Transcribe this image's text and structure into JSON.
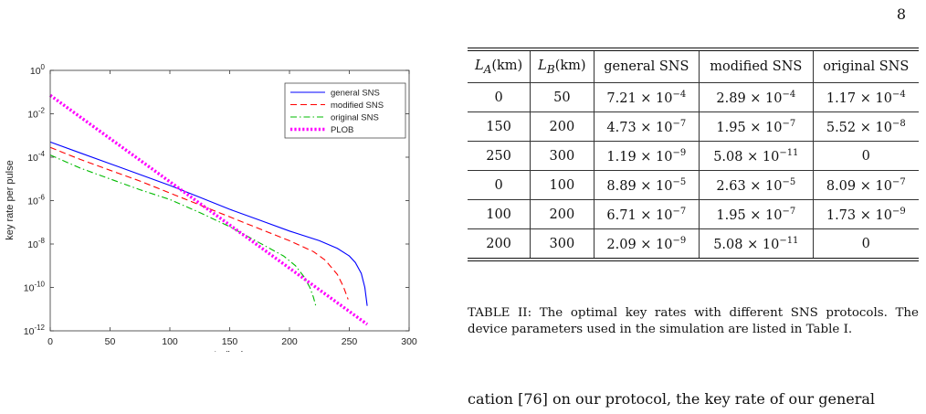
{
  "page_number": "8",
  "chart_data": {
    "type": "line",
    "xlabel": "L_A(km)",
    "ylabel": "key rate per pulse",
    "xlim": [
      0,
      300
    ],
    "ylim_log10": [
      -12,
      0
    ],
    "x_ticks": [
      "0",
      "50",
      "100",
      "150",
      "200",
      "250",
      "300"
    ],
    "y_ticks": [
      {
        "base": "10",
        "exp": "0"
      },
      {
        "base": "10",
        "exp": "-2"
      },
      {
        "base": "10",
        "exp": "-4"
      },
      {
        "base": "10",
        "exp": "-6"
      },
      {
        "base": "10",
        "exp": "-8"
      },
      {
        "base": "10",
        "exp": "-10"
      },
      {
        "base": "10",
        "exp": "-12"
      }
    ],
    "legend_position": "top-right",
    "series": [
      {
        "name": "general SNS",
        "color": "#0000ff",
        "style": "solid",
        "x": [
          0,
          25,
          50,
          75,
          100,
          125,
          150,
          175,
          200,
          225,
          240,
          250,
          255,
          260,
          263,
          265
        ],
        "log10_y": [
          -3.3,
          -3.8,
          -4.3,
          -4.8,
          -5.3,
          -5.85,
          -6.4,
          -6.9,
          -7.4,
          -7.85,
          -8.2,
          -8.55,
          -8.85,
          -9.35,
          -10.0,
          -10.85
        ]
      },
      {
        "name": "modified SNS",
        "color": "#ff0000",
        "style": "dashed",
        "x": [
          0,
          25,
          50,
          75,
          100,
          125,
          150,
          175,
          200,
          220,
          230,
          240,
          245,
          249
        ],
        "log10_y": [
          -3.55,
          -4.1,
          -4.6,
          -5.1,
          -5.65,
          -6.2,
          -6.75,
          -7.3,
          -7.85,
          -8.35,
          -8.75,
          -9.4,
          -9.95,
          -10.55
        ]
      },
      {
        "name": "original SNS",
        "color": "#00bb00",
        "style": "dash-dot",
        "x": [
          0,
          25,
          50,
          75,
          100,
          125,
          150,
          175,
          195,
          205,
          212,
          217,
          220,
          222
        ],
        "log10_y": [
          -3.9,
          -4.5,
          -5.0,
          -5.5,
          -5.95,
          -6.55,
          -7.2,
          -7.95,
          -8.55,
          -9.0,
          -9.5,
          -10.0,
          -10.45,
          -10.85
        ]
      },
      {
        "name": "PLOB",
        "color": "#ff00ff",
        "style": "dotted",
        "x": [
          0,
          265
        ],
        "log10_y": [
          -1.15,
          -11.7
        ]
      }
    ]
  },
  "table": {
    "caption_label": "TABLE II:",
    "caption_text": "The optimal key rates with different SNS protocols. The device parameters used in the simulation are listed in Table I.",
    "headers": [
      {
        "sym": "L",
        "sub": "A",
        "unit": "(km)"
      },
      {
        "sym": "L",
        "sub": "B",
        "unit": "(km)"
      },
      {
        "text": "general SNS"
      },
      {
        "text": "modified SNS"
      },
      {
        "text": "original SNS"
      }
    ],
    "rows": [
      [
        {
          "text": "0"
        },
        {
          "text": "50"
        },
        {
          "m": "7.21",
          "e": "−4"
        },
        {
          "m": "2.89",
          "e": "−4"
        },
        {
          "m": "1.17",
          "e": "−4"
        }
      ],
      [
        {
          "text": "150"
        },
        {
          "text": "200"
        },
        {
          "m": "4.73",
          "e": "−7"
        },
        {
          "m": "1.95",
          "e": "−7"
        },
        {
          "m": "5.52",
          "e": "−8"
        }
      ],
      [
        {
          "text": "250"
        },
        {
          "text": "300"
        },
        {
          "m": "1.19",
          "e": "−9"
        },
        {
          "m": "5.08",
          "e": "−11"
        },
        {
          "text": "0"
        }
      ],
      [
        {
          "text": "0"
        },
        {
          "text": "100"
        },
        {
          "m": "8.89",
          "e": "−5"
        },
        {
          "m": "2.63",
          "e": "−5"
        },
        {
          "m": "8.09",
          "e": "−7"
        }
      ],
      [
        {
          "text": "100"
        },
        {
          "text": "200"
        },
        {
          "m": "6.71",
          "e": "−7"
        },
        {
          "m": "1.95",
          "e": "−7"
        },
        {
          "m": "1.73",
          "e": "−9"
        }
      ],
      [
        {
          "text": "200"
        },
        {
          "text": "300"
        },
        {
          "m": "2.09",
          "e": "−9"
        },
        {
          "m": "5.08",
          "e": "−11"
        },
        {
          "text": "0"
        }
      ]
    ]
  },
  "body_text": "cation [76] on our protocol, the key rate of our general"
}
